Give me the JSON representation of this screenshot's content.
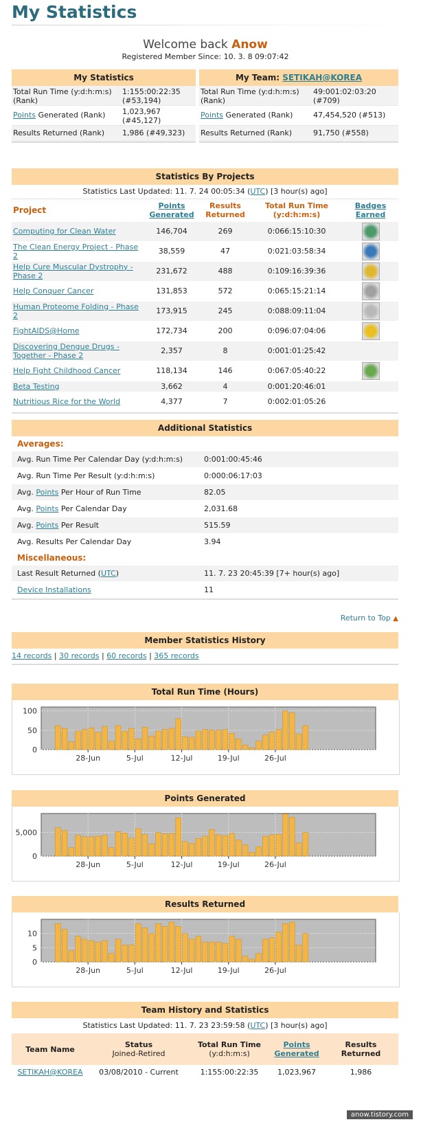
{
  "page_title": "My Statistics",
  "welcome_prefix": "Welcome back",
  "user_name": "Anow",
  "member_since": "Registered Member Since: 10. 3. 8 09:07:42",
  "my_stats": {
    "header": "My Statistics",
    "rows": [
      {
        "label": "Total Run Time (y:d:h:m:s) (Rank)",
        "value": "1:155:00:22:35 (#53,194)"
      },
      {
        "label_link": "Points",
        "label_rest": " Generated (Rank)",
        "value": "1,023,967 (#45,127)"
      },
      {
        "label": "Results Returned (Rank)",
        "value": "1,986 (#49,323)"
      }
    ]
  },
  "my_team": {
    "header_prefix": "My Team:",
    "team_name": "SETIKAH@KOREA",
    "rows": [
      {
        "label": "Total Run Time (y:d:h:m:s) (Rank)",
        "value": "49:001:02:03:20 (#709)"
      },
      {
        "label_link": "Points",
        "label_rest": " Generated (Rank)",
        "value": "47,454,520 (#513)"
      },
      {
        "label": "Results Returned (Rank)",
        "value": "91,750 (#558)"
      }
    ]
  },
  "projects": {
    "header": "Statistics By Projects",
    "updated_prefix": "Statistics Last Updated: 11. 7. 24 00:05:34 (",
    "updated_link": "UTC",
    "updated_suffix": ") [3 hour(s) ago]",
    "columns": [
      "Project",
      "Points Generated",
      "Results Returned",
      "Total Run Time (y:d:h:m:s)",
      "Badges Earned"
    ],
    "rows": [
      {
        "name": "Computing for Clean Water",
        "points": "146,704",
        "results": "269",
        "time": "0:066:15:10:30",
        "badge": "water-drop-badge-icon",
        "badge_color": "#4a9a6a"
      },
      {
        "name": "The Clean Energy Project - Phase 2",
        "points": "38,559",
        "results": "47",
        "time": "0:021:03:58:34",
        "badge": "energy-badge-icon",
        "badge_color": "#3a7ab8"
      },
      {
        "name": "Help Cure Muscular Dystrophy - Phase 2",
        "points": "231,672",
        "results": "488",
        "time": "0:109:16:39:36",
        "badge": "dystrophy-badge-icon",
        "badge_color": "#e0b830"
      },
      {
        "name": "Help Conquer Cancer",
        "points": "131,853",
        "results": "572",
        "time": "0:065:15:21:14",
        "badge": "cancer-badge-icon",
        "badge_color": "#a0a0a0"
      },
      {
        "name": "Human Proteome Folding - Phase 2",
        "points": "173,915",
        "results": "245",
        "time": "0:088:09:11:04",
        "badge": "proteome-badge-icon",
        "badge_color": "#b8b8b8"
      },
      {
        "name": "FightAIDS@Home",
        "points": "172,734",
        "results": "200",
        "time": "0:096:07:04:06",
        "badge": "aids-ribbon-badge-icon",
        "badge_color": "#e8c020"
      },
      {
        "name": "Discovering Dengue Drugs - Together - Phase 2",
        "points": "2,357",
        "results": "8",
        "time": "0:001:01:25:42",
        "badge": "",
        "badge_color": ""
      },
      {
        "name": "Help Fight Childhood Cancer",
        "points": "118,134",
        "results": "146",
        "time": "0:067:05:40:22",
        "badge": "child-figure-badge-icon",
        "badge_color": "#6aa84f"
      },
      {
        "name": "Beta Testing",
        "points": "3,662",
        "results": "4",
        "time": "0:001:20:46:01",
        "badge": "",
        "badge_color": ""
      },
      {
        "name": "Nutritious Rice for the World",
        "points": "4,377",
        "results": "7",
        "time": "0:002:01:05:26",
        "badge": "",
        "badge_color": ""
      }
    ]
  },
  "additional": {
    "header": "Additional Statistics",
    "averages_label": "Averages:",
    "averages": [
      {
        "label": "Avg. Run Time Per Calendar Day (y:d:h:m:s)",
        "value": "0:001:00:45:46"
      },
      {
        "label": "Avg. Run Time Per Result (y:d:h:m:s)",
        "value": "0:000:06:17:03"
      },
      {
        "pre": "Avg. ",
        "link": "Points",
        "post": " Per Hour of Run Time",
        "value": "82.05"
      },
      {
        "pre": "Avg. ",
        "link": "Points",
        "post": " Per Calendar Day",
        "value": "2,031.68"
      },
      {
        "pre": "Avg. ",
        "link": "Points",
        "post": " Per Result",
        "value": "515.59"
      },
      {
        "label": "Avg. Results Per Calendar Day",
        "value": "3.94"
      }
    ],
    "misc_label": "Miscellaneous:",
    "last_result_pre": "Last Result Returned (",
    "last_result_link": "UTC",
    "last_result_post": ")",
    "last_result_value": "11. 7. 23 20:45:39 [7+ hour(s) ago]",
    "device_link": "Device Installations",
    "device_value": "11"
  },
  "return_to_top": "Return to Top",
  "history": {
    "header": "Member Statistics History",
    "links": [
      "14 records",
      "30 records",
      "60 records",
      "365 records"
    ],
    "separator": "|"
  },
  "chart_data": [
    {
      "type": "bar",
      "title": "Total Run Time (Hours)",
      "x_ticks": [
        "28-Jun",
        "5-Jul",
        "12-Jul",
        "19-Jul",
        "26-Jul"
      ],
      "y_ticks": [
        "0",
        "50",
        "100"
      ],
      "ylim": [
        0,
        110
      ],
      "grid": true,
      "values": [
        62,
        55,
        20,
        48,
        52,
        56,
        45,
        60,
        22,
        62,
        48,
        55,
        28,
        58,
        35,
        48,
        52,
        55,
        80,
        33,
        32,
        48,
        52,
        50,
        50,
        52,
        42,
        28,
        12,
        5,
        22,
        38,
        45,
        52,
        100,
        95,
        40,
        62
      ]
    },
    {
      "type": "bar",
      "title": "Points Generated",
      "x_ticks": [
        "28-Jun",
        "5-Jul",
        "12-Jul",
        "19-Jul",
        "26-Jul"
      ],
      "y_ticks": [
        "0",
        "5,000"
      ],
      "ylim": [
        0,
        9000
      ],
      "grid": true,
      "values": [
        6000,
        5400,
        1800,
        4400,
        4100,
        4100,
        4200,
        4400,
        1800,
        5200,
        4900,
        3800,
        5800,
        4600,
        2600,
        5000,
        4700,
        4800,
        8100,
        3100,
        2700,
        3700,
        4200,
        5600,
        4500,
        4300,
        4800,
        3400,
        2400,
        800,
        2000,
        4200,
        4500,
        4600,
        8900,
        8200,
        2800,
        5000
      ]
    },
    {
      "type": "bar",
      "title": "Results Returned",
      "x_ticks": [
        "28-Jun",
        "5-Jul",
        "12-Jul",
        "19-Jul",
        "26-Jul"
      ],
      "y_ticks": [
        "0",
        "5",
        "10"
      ],
      "ylim": [
        0,
        15
      ],
      "grid": true,
      "values": [
        13.5,
        11.5,
        4,
        9,
        8,
        7.5,
        7,
        7.5,
        3,
        8,
        6,
        6,
        13.5,
        12,
        10,
        13.5,
        12.5,
        14,
        12.5,
        10,
        8,
        9,
        7,
        7,
        7,
        6.5,
        9,
        8,
        2,
        1,
        3,
        8,
        8.5,
        10.5,
        13.5,
        14,
        6,
        10
      ]
    }
  ],
  "team_history": {
    "header": "Team History and Statistics",
    "updated_prefix": "Statistics Last Updated: 11. 7. 23 23:59:58 (",
    "updated_link": "UTC",
    "updated_suffix": ") [3 hour(s) ago]",
    "col_team": "Team Name",
    "col_status": "Status",
    "col_status_sub": "Joined-Retired",
    "col_time": "Total Run Time",
    "col_time_sub": "(y:d:h:m:s)",
    "col_points_1": "Points",
    "col_points_2": "Generated",
    "col_results": "Results Returned",
    "row": {
      "team": "SETIKAH@KOREA",
      "status": "03/08/2010 - Current",
      "time": "1:155:00:22:35",
      "points": "1,023,967",
      "results": "1,986"
    }
  },
  "watermark": "anow.tistory.com",
  "colors": {
    "accent": "#c8600e",
    "header_bg": "#fdd7a2",
    "link": "#2d7f96",
    "bar": "#f3b645"
  }
}
